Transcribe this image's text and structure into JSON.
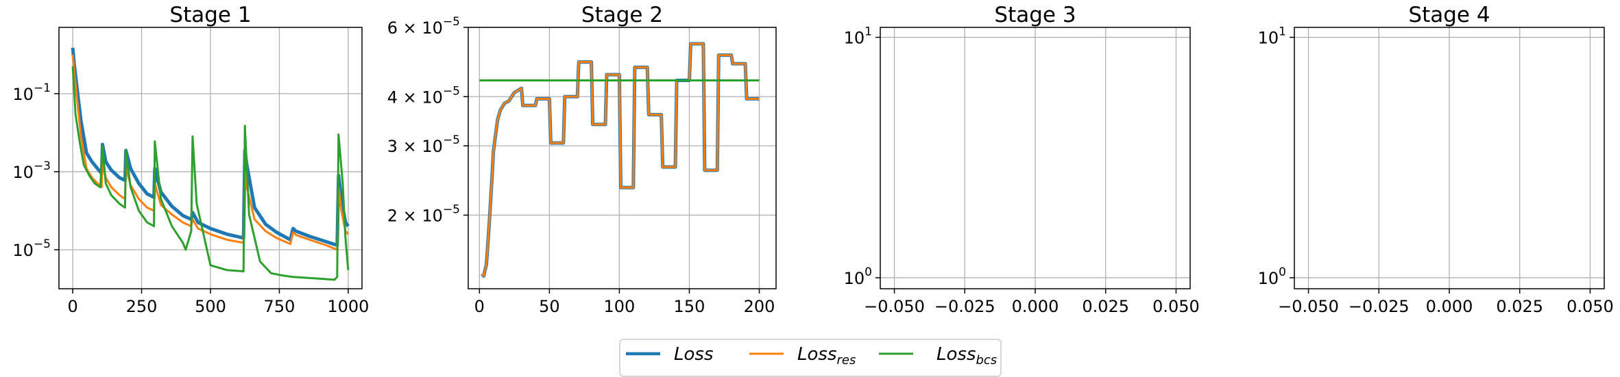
{
  "colors": {
    "loss": "#1f77b4",
    "loss_res": "#ff7f0e",
    "loss_bcs": "#2ca02c",
    "grid": "#b0b0b0",
    "axis": "#000000"
  },
  "legend": {
    "placement": "bottom-center",
    "entries": [
      {
        "key": "loss",
        "base": "Loss",
        "sub": ""
      },
      {
        "key": "loss_res",
        "base": "Loss",
        "sub": "res"
      },
      {
        "key": "loss_bcs",
        "base": "Loss",
        "sub": "bcs"
      }
    ]
  },
  "chart_data": [
    {
      "type": "line",
      "title": "Stage 1",
      "xlabel": "",
      "ylabel": "",
      "xlim": [
        -50,
        1050
      ],
      "ylim": [
        1e-06,
        5.0
      ],
      "y_scale": "log",
      "grid": true,
      "x_ticks": [
        0,
        250,
        500,
        750,
        1000
      ],
      "x_tick_labels": [
        "0",
        "250",
        "500",
        "750",
        "1000"
      ],
      "y_ticks": [
        0.1,
        0.001,
        1e-05
      ],
      "y_tick_labels": [
        {
          "base": "10",
          "exp": "−1"
        },
        {
          "base": "10",
          "exp": "−3"
        },
        {
          "base": "10",
          "exp": "−5"
        }
      ],
      "series": [
        {
          "key": "loss",
          "x": [
            0,
            5,
            15,
            30,
            50,
            70,
            90,
            105,
            108,
            120,
            140,
            170,
            190,
            193,
            210,
            240,
            270,
            295,
            298,
            320,
            360,
            400,
            430,
            435,
            455,
            500,
            560,
            620,
            625,
            632,
            660,
            700,
            740,
            790,
            800,
            810,
            860,
            920,
            960,
            965,
            975,
            990,
            1000
          ],
          "y": [
            1.5,
            0.6,
            0.15,
            0.02,
            0.003,
            0.0018,
            0.0012,
            0.0009,
            0.005,
            0.0018,
            0.0011,
            0.0007,
            0.0006,
            0.0035,
            0.0012,
            0.0005,
            0.00027,
            0.00022,
            0.0012,
            0.0003,
            0.00013,
            7.5e-05,
            6e-05,
            9e-05,
            5e-05,
            3.5e-05,
            2.5e-05,
            2e-05,
            0.0035,
            0.0015,
            0.00012,
            4.5e-05,
            2.8e-05,
            1.8e-05,
            3.5e-05,
            3e-05,
            2.2e-05,
            1.6e-05,
            1.3e-05,
            0.0008,
            0.0002,
            5e-05,
            4e-05
          ]
        },
        {
          "key": "loss_res",
          "x": [
            0,
            5,
            15,
            30,
            50,
            70,
            90,
            105,
            108,
            120,
            140,
            170,
            190,
            193,
            210,
            240,
            270,
            295,
            298,
            320,
            360,
            400,
            430,
            435,
            455,
            500,
            560,
            620,
            625,
            632,
            660,
            700,
            740,
            790,
            800,
            810,
            860,
            920,
            960,
            965,
            975,
            990,
            1000
          ],
          "y": [
            1.0,
            0.4,
            0.08,
            0.008,
            0.0012,
            0.0007,
            0.0005,
            0.0004,
            0.002,
            0.0007,
            0.0004,
            0.00025,
            0.0002,
            0.0013,
            0.00045,
            0.0002,
            0.00012,
            0.0001,
            0.0005,
            0.00014,
            8e-05,
            5e-05,
            4e-05,
            6e-05,
            3.5e-05,
            2.5e-05,
            1.8e-05,
            1.5e-05,
            0.001,
            0.0004,
            6e-05,
            3e-05,
            2e-05,
            1.4e-05,
            2.8e-05,
            2.4e-05,
            1.8e-05,
            1.3e-05,
            1e-05,
            0.0004,
            0.0001,
            3e-05,
            2.5e-05
          ]
        },
        {
          "key": "loss_bcs",
          "x": [
            0,
            10,
            25,
            40,
            60,
            80,
            100,
            108,
            120,
            140,
            170,
            190,
            193,
            210,
            240,
            270,
            295,
            298,
            320,
            360,
            400,
            410,
            430,
            435,
            450,
            500,
            560,
            620,
            625,
            640,
            680,
            720,
            760,
            800,
            900,
            950,
            960,
            965,
            980,
            990,
            1000
          ],
          "y": [
            0.5,
            0.03,
            0.006,
            0.0015,
            0.0008,
            0.0005,
            0.0004,
            0.0045,
            0.0005,
            0.00025,
            0.00015,
            0.00012,
            0.0035,
            0.0004,
            0.0001,
            5e-05,
            4e-05,
            0.006,
            0.0002,
            4e-05,
            1.5e-05,
            1e-05,
            3e-05,
            0.008,
            0.00015,
            4e-06,
            3e-06,
            2.8e-06,
            0.015,
            8e-05,
            5e-06,
            2.5e-06,
            2.2e-06,
            2e-06,
            1.8e-06,
            1.7e-06,
            2e-06,
            0.009,
            0.0005,
            2e-05,
            3e-06
          ]
        }
      ]
    },
    {
      "type": "line",
      "title": "Stage 2",
      "xlabel": "",
      "ylabel": "",
      "xlim": [
        -8,
        212
      ],
      "ylim": [
        1.3e-05,
        6e-05
      ],
      "y_scale": "log",
      "grid": true,
      "x_ticks": [
        0,
        50,
        100,
        150,
        200
      ],
      "x_tick_labels": [
        "0",
        "50",
        "100",
        "150",
        "200"
      ],
      "y_ticks": [
        6e-05,
        4e-05,
        3e-05,
        2e-05
      ],
      "y_tick_labels": [
        {
          "base": "6 × 10",
          "exp": "−5"
        },
        {
          "base": "4 × 10",
          "exp": "−5"
        },
        {
          "base": "3 × 10",
          "exp": "−5"
        },
        {
          "base": "2 × 10",
          "exp": "−5"
        }
      ],
      "series": [
        {
          "key": "loss",
          "x": [
            2,
            3,
            5,
            7,
            9,
            10,
            11,
            13,
            15,
            18,
            21,
            25,
            30,
            31,
            40,
            41,
            50,
            51,
            60,
            61,
            70,
            71,
            80,
            81,
            90,
            91,
            100,
            101,
            110,
            111,
            120,
            121,
            130,
            131,
            140,
            141,
            150,
            151,
            160,
            161,
            170,
            171,
            180,
            181,
            190,
            191,
            200
          ],
          "y": [
            1.42e-05,
            1.4e-05,
            1.5e-05,
            1.9e-05,
            2.5e-05,
            2.9e-05,
            3.1e-05,
            3.5e-05,
            3.7e-05,
            3.85e-05,
            3.9e-05,
            4.1e-05,
            4.2e-05,
            3.8e-05,
            3.8e-05,
            3.95e-05,
            3.95e-05,
            3.05e-05,
            3.05e-05,
            4e-05,
            4e-05,
            4.9e-05,
            4.9e-05,
            3.4e-05,
            3.4e-05,
            4.55e-05,
            4.55e-05,
            2.35e-05,
            2.35e-05,
            4.75e-05,
            4.75e-05,
            3.6e-05,
            3.6e-05,
            2.65e-05,
            2.65e-05,
            4.4e-05,
            4.4e-05,
            5.45e-05,
            5.45e-05,
            2.6e-05,
            2.6e-05,
            5.1e-05,
            5.1e-05,
            4.85e-05,
            4.85e-05,
            3.95e-05,
            3.95e-05
          ]
        },
        {
          "key": "loss_res",
          "x": [
            2,
            3,
            5,
            7,
            9,
            10,
            11,
            13,
            15,
            18,
            21,
            25,
            30,
            31,
            40,
            41,
            50,
            51,
            60,
            61,
            70,
            71,
            80,
            81,
            90,
            91,
            100,
            101,
            110,
            111,
            120,
            121,
            130,
            131,
            140,
            141,
            150,
            151,
            160,
            161,
            170,
            171,
            180,
            181,
            190,
            191,
            200
          ],
          "y": [
            1.42e-05,
            1.4e-05,
            1.5e-05,
            1.9e-05,
            2.5e-05,
            2.9e-05,
            3.1e-05,
            3.5e-05,
            3.7e-05,
            3.85e-05,
            3.9e-05,
            4.1e-05,
            4.2e-05,
            3.8e-05,
            3.8e-05,
            3.95e-05,
            3.95e-05,
            3.05e-05,
            3.05e-05,
            4e-05,
            4e-05,
            4.9e-05,
            4.9e-05,
            3.4e-05,
            3.4e-05,
            4.55e-05,
            4.55e-05,
            2.35e-05,
            2.35e-05,
            4.75e-05,
            4.75e-05,
            3.6e-05,
            3.6e-05,
            2.65e-05,
            2.65e-05,
            4.4e-05,
            4.4e-05,
            5.45e-05,
            5.45e-05,
            2.6e-05,
            2.6e-05,
            5.1e-05,
            5.1e-05,
            4.85e-05,
            4.85e-05,
            3.95e-05,
            3.95e-05
          ]
        },
        {
          "key": "loss_bcs",
          "x": [
            0,
            200
          ],
          "y": [
            4.4e-05,
            4.4e-05
          ]
        }
      ]
    },
    {
      "type": "line",
      "title": "Stage 3",
      "xlabel": "",
      "ylabel": "",
      "xlim": [
        -0.055,
        0.055
      ],
      "ylim": [
        0.9,
        11.0
      ],
      "y_scale": "log",
      "grid": true,
      "x_ticks": [
        -0.05,
        -0.025,
        0,
        0.025,
        0.05
      ],
      "x_tick_labels": [
        "−0.050",
        "−0.025",
        "0.000",
        "0.025",
        "0.050"
      ],
      "y_ticks": [
        10,
        1
      ],
      "y_tick_labels": [
        {
          "base": "10",
          "exp": "1"
        },
        {
          "base": "10",
          "exp": "0"
        }
      ],
      "series": []
    },
    {
      "type": "line",
      "title": "Stage 4",
      "xlabel": "",
      "ylabel": "",
      "xlim": [
        -0.055,
        0.055
      ],
      "ylim": [
        0.9,
        11.0
      ],
      "y_scale": "log",
      "grid": true,
      "x_ticks": [
        -0.05,
        -0.025,
        0,
        0.025,
        0.05
      ],
      "x_tick_labels": [
        "−0.050",
        "−0.025",
        "0.000",
        "0.025",
        "0.050"
      ],
      "y_ticks": [
        10,
        1
      ],
      "y_tick_labels": [
        {
          "base": "10",
          "exp": "1"
        },
        {
          "base": "10",
          "exp": "0"
        }
      ],
      "series": []
    }
  ]
}
